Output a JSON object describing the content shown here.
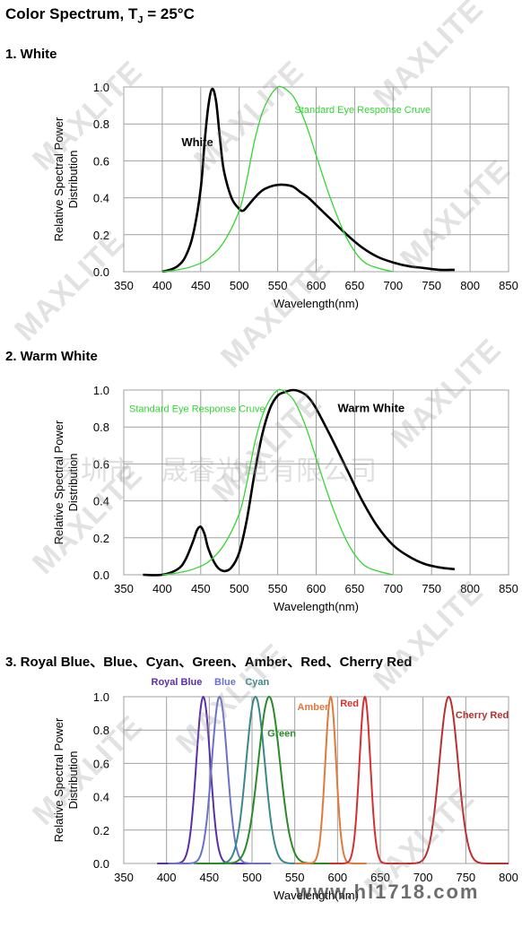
{
  "title_main": "Color Spectrum, T",
  "title_sub": "J",
  "title_tail": " = 25°C",
  "sections": {
    "white": "1. White",
    "warm": "2. Warm White",
    "colors": "3. Royal Blue、Blue、Cyan、Green、Amber、Red、Cherry Red"
  },
  "watermark": {
    "brand": "MAXLITE",
    "cn": "深圳市　晟睿光电有限公司",
    "site": "www.hl1718.com"
  },
  "colors": {
    "grid": "#a0a0a0",
    "eye": "#33d633",
    "spd": "#000000",
    "royal": "#5a2ea8",
    "blue": "#6a72c8",
    "cyan": "#3a8888",
    "green": "#2a8a2a",
    "amber": "#e07a3a",
    "red": "#d43030",
    "cherry": "#b83030"
  },
  "chart_data": [
    {
      "type": "line",
      "ylabel": "Relative Spectral Power Distribution",
      "xlabel": "Wavelength(nm)",
      "xlim": [
        350,
        850
      ],
      "ylim": [
        0,
        1.0
      ],
      "xticks": [
        "350",
        "400",
        "450",
        "500",
        "550",
        "600",
        "650",
        "700",
        "750",
        "800",
        "850"
      ],
      "yticks": [
        "0.0",
        "0.2",
        "0.4",
        "0.6",
        "0.8",
        "1.0"
      ],
      "grid": true,
      "annotations": [
        {
          "text": "White",
          "x": 425,
          "y": 0.68
        },
        {
          "text": "Standard Eye Response Cruve",
          "x": 572,
          "y": 0.86
        }
      ],
      "series": [
        {
          "name": "White",
          "x": [
            400,
            410,
            420,
            430,
            440,
            450,
            455,
            460,
            465,
            470,
            475,
            480,
            490,
            500,
            505,
            510,
            520,
            530,
            540,
            550,
            560,
            570,
            580,
            590,
            600,
            620,
            640,
            660,
            680,
            700,
            720,
            740,
            760,
            780
          ],
          "y": [
            0.0,
            0.01,
            0.03,
            0.08,
            0.2,
            0.45,
            0.7,
            0.9,
            0.99,
            0.92,
            0.72,
            0.55,
            0.4,
            0.34,
            0.33,
            0.35,
            0.4,
            0.44,
            0.46,
            0.47,
            0.47,
            0.46,
            0.43,
            0.4,
            0.36,
            0.28,
            0.2,
            0.13,
            0.08,
            0.05,
            0.03,
            0.02,
            0.01,
            0.01
          ]
        },
        {
          "name": "Standard Eye Response Cruve",
          "x": [
            400,
            420,
            440,
            460,
            480,
            500,
            510,
            520,
            530,
            540,
            550,
            555,
            560,
            570,
            580,
            590,
            600,
            620,
            640,
            660,
            680,
            700
          ],
          "y": [
            0.0,
            0.01,
            0.03,
            0.07,
            0.16,
            0.33,
            0.5,
            0.71,
            0.86,
            0.95,
            1.0,
            1.0,
            0.99,
            0.95,
            0.87,
            0.76,
            0.63,
            0.38,
            0.18,
            0.06,
            0.02,
            0.0
          ]
        }
      ]
    },
    {
      "type": "line",
      "ylabel": "Relative Spectral Power Distribution",
      "xlabel": "Wavelength(nm)",
      "xlim": [
        350,
        850
      ],
      "ylim": [
        0,
        1.0
      ],
      "xticks": [
        "350",
        "400",
        "450",
        "500",
        "550",
        "600",
        "650",
        "700",
        "750",
        "800",
        "850"
      ],
      "yticks": [
        "0.0",
        "0.2",
        "0.4",
        "0.6",
        "0.8",
        "1.0"
      ],
      "grid": true,
      "annotations": [
        {
          "text": "Standard Eye Response Cruve",
          "x": 357,
          "y": 0.88
        },
        {
          "text": "Warm White",
          "x": 628,
          "y": 0.88
        }
      ],
      "series": [
        {
          "name": "Warm White",
          "x": [
            375,
            400,
            420,
            430,
            440,
            445,
            450,
            455,
            460,
            470,
            480,
            490,
            500,
            510,
            520,
            530,
            540,
            550,
            560,
            570,
            580,
            590,
            600,
            620,
            640,
            660,
            680,
            700,
            720,
            740,
            760,
            780
          ],
          "y": [
            0.0,
            0.0,
            0.03,
            0.08,
            0.18,
            0.24,
            0.26,
            0.22,
            0.14,
            0.05,
            0.02,
            0.04,
            0.12,
            0.3,
            0.55,
            0.76,
            0.9,
            0.97,
            0.99,
            1.0,
            0.99,
            0.96,
            0.9,
            0.74,
            0.57,
            0.4,
            0.26,
            0.16,
            0.1,
            0.06,
            0.04,
            0.03
          ]
        },
        {
          "name": "Standard Eye Response Cruve",
          "x": [
            400,
            420,
            440,
            460,
            480,
            500,
            510,
            520,
            530,
            540,
            550,
            555,
            560,
            570,
            580,
            590,
            600,
            620,
            640,
            660,
            680,
            700
          ],
          "y": [
            0.0,
            0.01,
            0.03,
            0.07,
            0.16,
            0.33,
            0.5,
            0.71,
            0.86,
            0.95,
            1.0,
            1.0,
            0.99,
            0.95,
            0.87,
            0.76,
            0.63,
            0.38,
            0.18,
            0.06,
            0.02,
            0.0
          ]
        }
      ]
    },
    {
      "type": "line",
      "ylabel": "Relative Spectral Power Distribution",
      "xlabel": "Wavelength(nm)",
      "xlim": [
        350,
        800
      ],
      "ylim": [
        0,
        1.0
      ],
      "xticks": [
        "350",
        "400",
        "450",
        "500",
        "550",
        "600",
        "650",
        "700",
        "750",
        "800"
      ],
      "yticks": [
        "0.0",
        "0.2",
        "0.4",
        "0.6",
        "0.8",
        "1.0"
      ],
      "grid": true,
      "series": [
        {
          "name": "Royal Blue",
          "peak": 443,
          "width": 18
        },
        {
          "name": "Blue",
          "peak": 462,
          "width": 20
        },
        {
          "name": "Cyan",
          "peak": 504,
          "width": 24
        },
        {
          "name": "Green",
          "peak": 520,
          "width": 28
        },
        {
          "name": "Amber",
          "peak": 592,
          "width": 14
        },
        {
          "name": "Red",
          "peak": 632,
          "width": 14
        },
        {
          "name": "Cherry Red",
          "peak": 730,
          "width": 24
        }
      ],
      "legend_positions": [
        {
          "name": "Royal Blue",
          "x": 382,
          "y": 1.07
        },
        {
          "name": "Blue",
          "x": 456,
          "y": 1.07
        },
        {
          "name": "Cyan",
          "x": 492,
          "y": 1.07
        },
        {
          "name": "Green",
          "x": 518,
          "y": 0.76
        },
        {
          "name": "Amber",
          "x": 553,
          "y": 0.92
        },
        {
          "name": "Red",
          "x": 603,
          "y": 0.94
        },
        {
          "name": "Cherry Red",
          "x": 738,
          "y": 0.87
        }
      ]
    }
  ]
}
